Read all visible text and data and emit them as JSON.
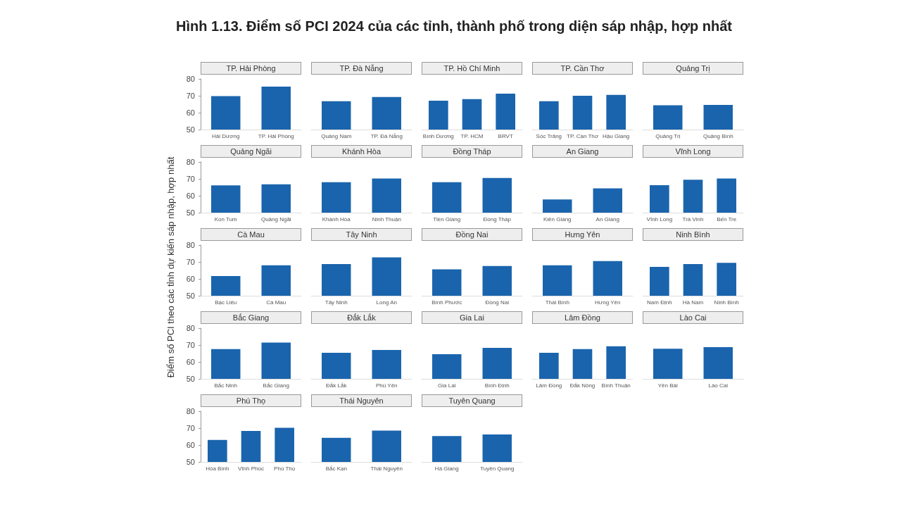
{
  "chart_data": [
    {
      "type": "other",
      "title": "Hình 1.13. Điểm số PCI 2024 của các tỉnh, thành phố trong diện sáp nhập, hợp nhất",
      "ylabel": "Điểm số PCI theo các tỉnh dự kiến sáp nhập, hợp nhất"
    },
    {
      "type": "bar",
      "title": "TP. Hải Phòng",
      "categories": [
        "Hải Dương",
        "TP. Hải Phòng"
      ],
      "values": [
        69.8,
        75.4
      ],
      "color": "#1a64ad",
      "ylim": [
        50,
        80
      ],
      "yticks": [
        50,
        60,
        70,
        80
      ]
    },
    {
      "type": "bar",
      "title": "TP. Đà Nẵng",
      "categories": [
        "Quảng Nam",
        "TP. Đà Nẵng"
      ],
      "values": [
        66.8,
        69.3
      ],
      "color": "#1a64ad",
      "ylim": [
        50,
        80
      ],
      "yticks": [
        50,
        60,
        70,
        80
      ],
      "tick_labels": "x"
    },
    {
      "type": "bar",
      "title": "TP. Hồ Chí Minh",
      "categories": [
        "Bình Dương",
        "TP. HCM",
        "BRVT"
      ],
      "values": [
        67.1,
        68.0,
        71.2
      ],
      "color": "#1a64ad",
      "ylim": [
        50,
        80
      ],
      "yticks": [
        50,
        60,
        70,
        80
      ],
      "tick_labels": "x"
    },
    {
      "type": "bar",
      "title": "TP. Cần Thơ",
      "categories": [
        "Sóc Trăng",
        "TP. Cần Thơ",
        "Hậu Giang"
      ],
      "values": [
        66.8,
        70.0,
        70.5
      ],
      "color": "#1a64ad",
      "ylim": [
        50,
        80
      ],
      "yticks": [
        50,
        60,
        70,
        80
      ],
      "tick_labels": "x"
    },
    {
      "type": "bar",
      "title": "Quảng Trị",
      "categories": [
        "Quảng Trị",
        "Quảng Bình"
      ],
      "values": [
        64.4,
        64.6
      ],
      "color": "#1a64ad",
      "ylim": [
        50,
        80
      ],
      "yticks": [
        50,
        60,
        70,
        80
      ],
      "tick_labels": "x"
    },
    {
      "type": "bar",
      "title": "Quảng Ngãi",
      "categories": [
        "Kon Tum",
        "Quảng Ngãi"
      ],
      "values": [
        66.1,
        66.8
      ],
      "color": "#1a64ad",
      "ylim": [
        50,
        80
      ],
      "yticks": [
        50,
        60,
        70,
        80
      ]
    },
    {
      "type": "bar",
      "title": "Khánh Hòa",
      "categories": [
        "Khánh Hòa",
        "Ninh Thuận"
      ],
      "values": [
        68.0,
        70.2
      ],
      "color": "#1a64ad",
      "ylim": [
        50,
        80
      ],
      "yticks": [
        50,
        60,
        70,
        80
      ],
      "tick_labels": "x"
    },
    {
      "type": "bar",
      "title": "Đồng Tháp",
      "categories": [
        "Tiền Giang",
        "Đồng Tháp"
      ],
      "values": [
        68.0,
        70.5
      ],
      "color": "#1a64ad",
      "ylim": [
        50,
        80
      ],
      "yticks": [
        50,
        60,
        70,
        80
      ],
      "tick_labels": "x"
    },
    {
      "type": "bar",
      "title": "An Giang",
      "categories": [
        "Kiên Giang",
        "An Giang"
      ],
      "values": [
        57.8,
        64.4
      ],
      "color": "#1a64ad",
      "ylim": [
        50,
        80
      ],
      "yticks": [
        50,
        60,
        70,
        80
      ],
      "tick_labels": "x"
    },
    {
      "type": "bar",
      "title": "Vĩnh Long",
      "categories": [
        "Vĩnh Long",
        "Trà Vinh",
        "Bến Tre"
      ],
      "values": [
        66.3,
        69.5,
        70.2
      ],
      "color": "#1a64ad",
      "ylim": [
        50,
        80
      ],
      "yticks": [
        50,
        60,
        70,
        80
      ],
      "tick_labels": "x"
    },
    {
      "type": "bar",
      "title": "Cà Mau",
      "categories": [
        "Bạc Liêu",
        "Cà Mau"
      ],
      "values": [
        61.7,
        68.0
      ],
      "color": "#1a64ad",
      "ylim": [
        50,
        80
      ],
      "yticks": [
        50,
        60,
        70,
        80
      ]
    },
    {
      "type": "bar",
      "title": "Tây Ninh",
      "categories": [
        "Tây Ninh",
        "Long An"
      ],
      "values": [
        68.8,
        72.7
      ],
      "color": "#1a64ad",
      "ylim": [
        50,
        80
      ],
      "yticks": [
        50,
        60,
        70,
        80
      ],
      "tick_labels": "x"
    },
    {
      "type": "bar",
      "title": "Đồng Nai",
      "categories": [
        "Bình Phước",
        "Đồng Nai"
      ],
      "values": [
        65.6,
        67.6
      ],
      "color": "#1a64ad",
      "ylim": [
        50,
        80
      ],
      "yticks": [
        50,
        60,
        70,
        80
      ],
      "tick_labels": "x"
    },
    {
      "type": "bar",
      "title": "Hưng Yên",
      "categories": [
        "Thái Bình",
        "Hưng Yên"
      ],
      "values": [
        68.0,
        70.5
      ],
      "color": "#1a64ad",
      "ylim": [
        50,
        80
      ],
      "yticks": [
        50,
        60,
        70,
        80
      ],
      "tick_labels": "x"
    },
    {
      "type": "bar",
      "title": "Ninh Bình",
      "categories": [
        "Nam Định",
        "Hà Nam",
        "Ninh Bình"
      ],
      "values": [
        67.1,
        68.8,
        69.5
      ],
      "color": "#1a64ad",
      "ylim": [
        50,
        80
      ],
      "yticks": [
        50,
        60,
        70,
        80
      ],
      "tick_labels": "x"
    },
    {
      "type": "bar",
      "title": "Bắc Giang",
      "categories": [
        "Bắc Ninh",
        "Bắc Giang"
      ],
      "values": [
        67.6,
        71.5
      ],
      "color": "#1a64ad",
      "ylim": [
        50,
        80
      ],
      "yticks": [
        50,
        60,
        70,
        80
      ]
    },
    {
      "type": "bar",
      "title": "Đắk Lắk",
      "categories": [
        "Đắk Lắk",
        "Phú Yên"
      ],
      "values": [
        65.4,
        67.1
      ],
      "color": "#1a64ad",
      "ylim": [
        50,
        80
      ],
      "yticks": [
        50,
        60,
        70,
        80
      ],
      "tick_labels": "x"
    },
    {
      "type": "bar",
      "title": "Gia Lai",
      "categories": [
        "Gia Lai",
        "Bình Định"
      ],
      "values": [
        64.6,
        68.3
      ],
      "color": "#1a64ad",
      "ylim": [
        50,
        80
      ],
      "yticks": [
        50,
        60,
        70,
        80
      ],
      "tick_labels": "x"
    },
    {
      "type": "bar",
      "title": "Lâm Đồng",
      "categories": [
        "Lâm Đồng",
        "Đắk Nông",
        "Bình Thuận"
      ],
      "values": [
        65.4,
        67.6,
        69.3
      ],
      "color": "#1a64ad",
      "ylim": [
        50,
        80
      ],
      "yticks": [
        50,
        60,
        70,
        80
      ],
      "tick_labels": "x"
    },
    {
      "type": "bar",
      "title": "Lào Cai",
      "categories": [
        "Yên Bái",
        "Lào Cai"
      ],
      "values": [
        67.8,
        68.8
      ],
      "color": "#1a64ad",
      "ylim": [
        50,
        80
      ],
      "yticks": [
        50,
        60,
        70,
        80
      ],
      "tick_labels": "x"
    },
    {
      "type": "bar",
      "title": "Phú Thọ",
      "categories": [
        "Hòa Bình",
        "Vĩnh Phúc",
        "Phú Thọ"
      ],
      "values": [
        63.0,
        68.3,
        70.2
      ],
      "color": "#1a64ad",
      "ylim": [
        50,
        80
      ],
      "yticks": [
        50,
        60,
        70,
        80
      ]
    },
    {
      "type": "bar",
      "title": "Thái Nguyên",
      "categories": [
        "Bắc Kạn",
        "Thái Nguyên"
      ],
      "values": [
        64.3,
        68.5
      ],
      "color": "#1a64ad",
      "ylim": [
        50,
        80
      ],
      "yticks": [
        50,
        60,
        70,
        80
      ],
      "tick_labels": "x"
    },
    {
      "type": "bar",
      "title": "Tuyên Quang",
      "categories": [
        "Hà Giang",
        "Tuyên Quang"
      ],
      "values": [
        65.3,
        66.2
      ],
      "color": "#1a64ad",
      "ylim": [
        50,
        80
      ],
      "yticks": [
        50,
        60,
        70,
        80
      ],
      "tick_labels": "x"
    }
  ]
}
